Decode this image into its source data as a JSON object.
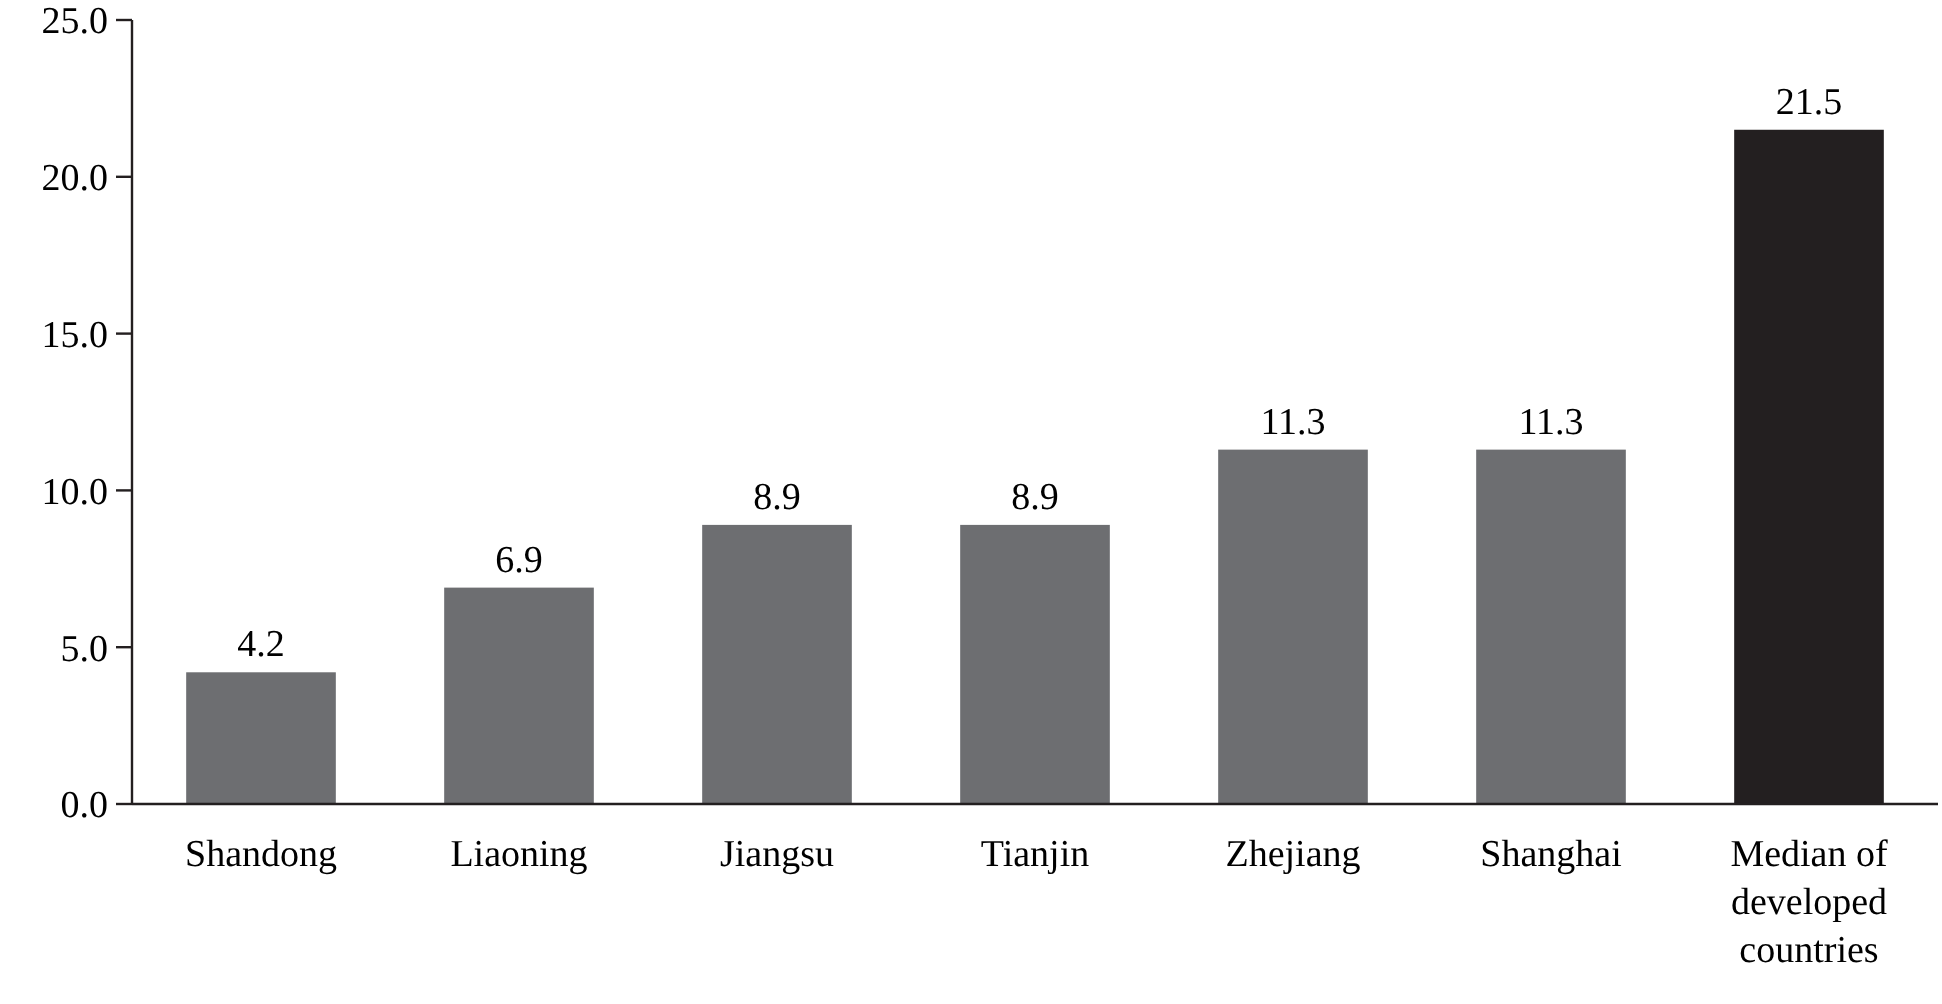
{
  "chart_data": {
    "type": "bar",
    "categories": [
      "Shandong",
      "Liaoning",
      "Jiangsu",
      "Tianjin",
      "Zhejiang",
      "Shanghai",
      "Median of developed countries"
    ],
    "values": [
      4.2,
      6.9,
      8.9,
      8.9,
      11.3,
      11.3,
      21.5
    ],
    "colors": [
      "#6d6e71",
      "#6d6e71",
      "#6d6e71",
      "#6d6e71",
      "#6d6e71",
      "#6d6e71",
      "#231f20"
    ],
    "ylim": [
      0,
      25
    ],
    "yticks": [
      {
        "value": 0,
        "label": "0.0"
      },
      {
        "value": 5,
        "label": "5.0"
      },
      {
        "value": 10,
        "label": "10.0"
      },
      {
        "value": 15,
        "label": "15.0"
      },
      {
        "value": 20,
        "label": "20.0"
      },
      {
        "value": 25,
        "label": "25.0"
      }
    ],
    "data_labels": true,
    "grid": false
  }
}
